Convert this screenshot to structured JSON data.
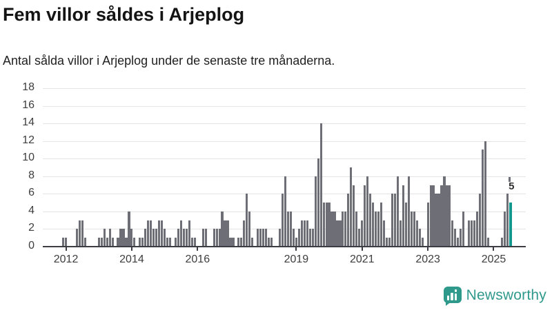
{
  "header": {
    "title": "Fem villor såldes i Arjeplog",
    "subtitle": "Antal sålda villor i Arjeplog under de senaste tre månaderna."
  },
  "branding": {
    "logo_text": "Newsworthy",
    "logo_icon": "speech-bubble-bar-chart-icon",
    "color": "#2f998c"
  },
  "colors": {
    "bar": "#6e6e77",
    "highlight_bar": "#12988e",
    "gridline": "#e4e4e4",
    "axis": "#3c3c44",
    "axis_text": "#3d3d3d",
    "annotation_text": "#303030"
  },
  "chart_data": {
    "type": "bar",
    "title": "Fem villor såldes i Arjeplog",
    "subtitle": "Antal sålda villor i Arjeplog under de senaste tre månaderna.",
    "xlabel": "",
    "ylabel": "",
    "ylim": [
      0,
      18
    ],
    "yticks": [
      0,
      2,
      4,
      6,
      8,
      10,
      12,
      14,
      16,
      18
    ],
    "grid": "horizontal",
    "x_tick_years": [
      2012,
      2014,
      2016,
      2019,
      2021,
      2023,
      2025
    ],
    "start_month": "2011-12",
    "end_month": "2025-07",
    "values": [
      1,
      1,
      0,
      0,
      0,
      2,
      3,
      3,
      1,
      0,
      0,
      0,
      0,
      1,
      1,
      2,
      1,
      2,
      1,
      0,
      1,
      2,
      2,
      1,
      4,
      2,
      1,
      0,
      1,
      1,
      2,
      3,
      3,
      2,
      2,
      3,
      3,
      2,
      1,
      1,
      0,
      1,
      2,
      3,
      2,
      2,
      3,
      1,
      1,
      0,
      0,
      2,
      2,
      0,
      0,
      2,
      2,
      2,
      4,
      3,
      3,
      1,
      1,
      0,
      1,
      1,
      3,
      6,
      4,
      1,
      0,
      2,
      2,
      2,
      2,
      1,
      1,
      0,
      0,
      2,
      6,
      8,
      4,
      4,
      2,
      1,
      2,
      3,
      3,
      3,
      2,
      2,
      8,
      10,
      14,
      5,
      5,
      5,
      4,
      4,
      3,
      3,
      4,
      4,
      6,
      9,
      7,
      4,
      2,
      3,
      7,
      8,
      6,
      5,
      4,
      4,
      5,
      3,
      1,
      1,
      6,
      6,
      8,
      3,
      7,
      5,
      8,
      4,
      4,
      3,
      2,
      1,
      0,
      5,
      7,
      7,
      6,
      6,
      7,
      8,
      7,
      7,
      3,
      2,
      1,
      2,
      4,
      0,
      3,
      3,
      3,
      4,
      6,
      11,
      12,
      1,
      0,
      0,
      0,
      0,
      1,
      4,
      6,
      5
    ],
    "highlight_last_bar": true,
    "last_bar_value": 5,
    "last_bar_label": "5",
    "projection_marker_value": 8
  }
}
